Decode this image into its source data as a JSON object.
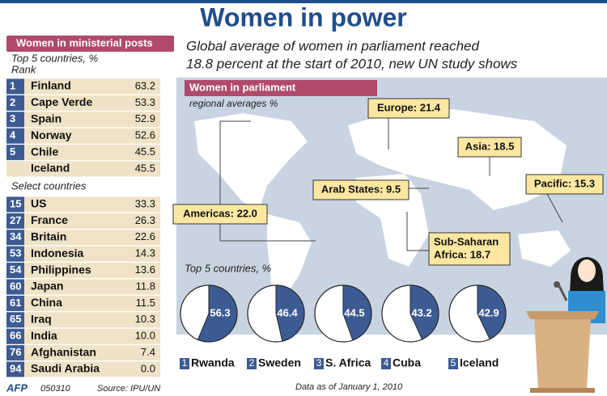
{
  "title": "Women in power",
  "ministerial": {
    "header": "Women in ministerial posts",
    "subtitle": "Top 5 countries, %",
    "rank_label": "Rank",
    "top": [
      {
        "rank": 1,
        "country": "Finland",
        "value": "63.2"
      },
      {
        "rank": 2,
        "country": "Cape Verde",
        "value": "53.3"
      },
      {
        "rank": 3,
        "country": "Spain",
        "value": "52.9"
      },
      {
        "rank": 4,
        "country": "Norway",
        "value": "52.6"
      },
      {
        "rank": 5,
        "country": "Chile",
        "value": "45.5"
      },
      {
        "rank": null,
        "country": "Iceland",
        "value": "45.5"
      }
    ],
    "select_label": "Select countries",
    "select": [
      {
        "rank": 15,
        "country": "US",
        "value": "33.3"
      },
      {
        "rank": 27,
        "country": "France",
        "value": "26.3"
      },
      {
        "rank": 34,
        "country": "Britain",
        "value": "22.6"
      },
      {
        "rank": 53,
        "country": "Indonesia",
        "value": "14.3"
      },
      {
        "rank": 54,
        "country": "Philippines",
        "value": "13.6"
      },
      {
        "rank": 60,
        "country": "Japan",
        "value": "11.8"
      },
      {
        "rank": 61,
        "country": "China",
        "value": "11.5"
      },
      {
        "rank": 65,
        "country": "Iraq",
        "value": "10.3"
      },
      {
        "rank": 66,
        "country": "India",
        "value": "10.0"
      },
      {
        "rank": 76,
        "country": "Afghanistan",
        "value": "7.4"
      },
      {
        "rank": 94,
        "country": "Saudi Arabia",
        "value": "0.0"
      }
    ]
  },
  "headline": [
    "Global average of women in parliament reached",
    "18.8 percent at the start of 2010, new UN study shows"
  ],
  "parliament": {
    "header": "Women in parliament",
    "subtitle": "regional averages %",
    "regions": [
      {
        "lines": [
          "Europe: 21.4"
        ]
      },
      {
        "lines": [
          "Asia: 18.5"
        ]
      },
      {
        "lines": [
          "Pacific: 15.3"
        ]
      },
      {
        "lines": [
          "Arab States: 9.5"
        ]
      },
      {
        "lines": [
          "Americas: 22.0"
        ]
      },
      {
        "lines": [
          "Sub-Saharan",
          "Africa: 18.7"
        ]
      }
    ]
  },
  "chart_data": {
    "type": "pie",
    "title": "Top 5 countries, %",
    "categories": [
      "Rwanda",
      "Sweden",
      "S. Africa",
      "Cuba",
      "Iceland"
    ],
    "ranks": [
      1,
      2,
      3,
      4,
      5
    ],
    "values": [
      56.3,
      46.4,
      44.5,
      43.2,
      42.9
    ],
    "max": 100,
    "color": "#3d5b93"
  },
  "footer": {
    "agency": "AFP",
    "code": "050310",
    "source": "Source: IPU/UN",
    "note": "Data as of January 1, 2010"
  }
}
